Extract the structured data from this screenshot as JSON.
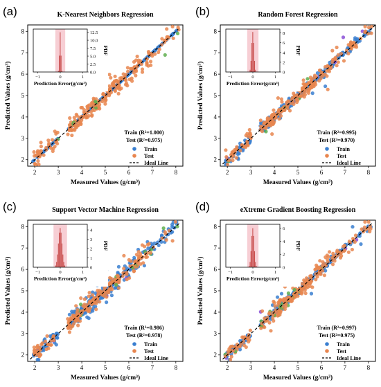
{
  "chart_data": [
    {
      "type": "scatter",
      "letter": "(a)",
      "title": "K-Nearest Neighbors Regression",
      "xlabel": "Measured  Values (g/cm³)",
      "ylabel": "Predicted  Values (g/cm³)",
      "xlim": [
        1.7,
        8.3
      ],
      "ylim": [
        1.7,
        8.3
      ],
      "xticks": [
        "2",
        "3",
        "4",
        "5",
        "6",
        "7",
        "8"
      ],
      "yticks": [
        "2",
        "3",
        "4",
        "5",
        "6",
        "7",
        "8"
      ],
      "grid": false,
      "legend_position": "lower-right",
      "train_stat": "Train (R²=1.000)",
      "test_stat": "Test (R²=0.975)",
      "series": [
        {
          "name": "Train",
          "color": "#3a7fd0",
          "r2": 1.0,
          "spread": 0.0
        },
        {
          "name": "Test",
          "color": "#e8864f",
          "r2": 0.975,
          "spread": 0.22
        }
      ],
      "ideal_line": {
        "name": "Ideal Line",
        "points": [
          [
            1.8,
            1.8
          ],
          [
            8.1,
            8.1
          ]
        ]
      },
      "inset": {
        "type": "histogram",
        "xlabel": "Prediction Error(g/cm³)",
        "ylabel": "PDF",
        "xlim": [
          -1.2,
          1.2
        ],
        "ylim": [
          0,
          13.5
        ],
        "xticks": [
          "−1",
          "0",
          "1"
        ],
        "yticks": [
          "0.0",
          "2.5",
          "5.0",
          "7.5",
          "10.0",
          "12.5"
        ],
        "peak": 12.5,
        "sigma": 0.03,
        "band": [
          -0.22,
          0.22
        ]
      }
    },
    {
      "type": "scatter",
      "letter": "(b)",
      "title": "Random Forest Regression",
      "xlabel": "Measured  Values (g/cm³)",
      "ylabel": "Predicted  Values (g/cm³)",
      "xlim": [
        1.7,
        8.3
      ],
      "ylim": [
        1.7,
        8.3
      ],
      "xticks": [
        "2",
        "3",
        "4",
        "5",
        "6",
        "7",
        "8"
      ],
      "yticks": [
        "2",
        "3",
        "4",
        "5",
        "6",
        "7",
        "8"
      ],
      "grid": false,
      "legend_position": "lower-right",
      "train_stat": "Train (R²=0.995)",
      "test_stat": "Test (R²=0.970)",
      "series": [
        {
          "name": "Train",
          "color": "#3a7fd0",
          "r2": 0.995,
          "spread": 0.1
        },
        {
          "name": "Test",
          "color": "#e8864f",
          "r2": 0.97,
          "spread": 0.17
        }
      ],
      "ideal_line": {
        "name": "Ideal Line",
        "points": [
          [
            1.8,
            1.8
          ],
          [
            8.3,
            8.3
          ]
        ]
      },
      "inset": {
        "type": "histogram",
        "xlabel": "Prediction Error(g/cm³)",
        "ylabel": "PDF",
        "xlim": [
          -1.2,
          1.2
        ],
        "ylim": [
          0,
          8.8
        ],
        "xticks": [
          "−1",
          "0",
          "1"
        ],
        "yticks": [
          "0",
          "2",
          "4",
          "6",
          "8"
        ],
        "peak": 8.2,
        "sigma": 0.05,
        "band": [
          -0.25,
          0.25
        ]
      }
    },
    {
      "type": "scatter",
      "letter": "(c)",
      "title": "Support Vector Machine Regression",
      "xlabel": "Measured  Values (g/cm³)",
      "ylabel": "Predicted  Values (g/cm³)",
      "xlim": [
        1.7,
        8.3
      ],
      "ylim": [
        1.7,
        8.3
      ],
      "xticks": [
        "2",
        "3",
        "4",
        "5",
        "6",
        "7",
        "8"
      ],
      "yticks": [
        "2",
        "3",
        "4",
        "5",
        "6",
        "7",
        "8"
      ],
      "grid": false,
      "legend_position": "lower-right",
      "train_stat": "Train (R²=0.986)",
      "test_stat": "Test (R²=0.978)",
      "series": [
        {
          "name": "Train",
          "color": "#3a7fd0",
          "r2": 0.986,
          "spread": 0.17
        },
        {
          "name": "Test",
          "color": "#e8864f",
          "r2": 0.978,
          "spread": 0.19
        }
      ],
      "ideal_line": {
        "name": "Ideal Line",
        "points": [
          [
            1.8,
            1.8
          ],
          [
            8.2,
            8.2
          ]
        ]
      },
      "inset": {
        "type": "histogram",
        "xlabel": "Prediction Error(g/cm³)",
        "ylabel": "PDF",
        "xlim": [
          -1.2,
          1.2
        ],
        "ylim": [
          0,
          4.6
        ],
        "xticks": [
          "−1",
          "0",
          "1"
        ],
        "yticks": [
          "0",
          "1",
          "2",
          "3",
          "4"
        ],
        "peak": 4.2,
        "sigma": 0.08,
        "band": [
          -0.3,
          0.3
        ]
      }
    },
    {
      "type": "scatter",
      "letter": "(d)",
      "title": "eXtreme Gradient Boosting Regression",
      "xlabel": "Measured  Values (g/cm³)",
      "ylabel": "Predicted  Values (g/cm³)",
      "xlim": [
        1.7,
        8.3
      ],
      "ylim": [
        1.7,
        8.3
      ],
      "xticks": [
        "2",
        "3",
        "4",
        "5",
        "6",
        "7",
        "8"
      ],
      "yticks": [
        "2",
        "3",
        "4",
        "5",
        "6",
        "7",
        "8"
      ],
      "grid": false,
      "legend_position": "lower-right",
      "train_stat": "Train (R²=0.997)",
      "test_stat": "Test (R²=0.975)",
      "series": [
        {
          "name": "Train",
          "color": "#3a7fd0",
          "r2": 0.997,
          "spread": 0.08
        },
        {
          "name": "Test",
          "color": "#e8864f",
          "r2": 0.975,
          "spread": 0.18
        }
      ],
      "ideal_line": {
        "name": "Ideal Line",
        "points": [
          [
            1.8,
            1.8
          ],
          [
            8.2,
            8.2
          ]
        ]
      },
      "inset": {
        "type": "histogram",
        "xlabel": "Prediction Error(g/cm³)",
        "ylabel": "PDF",
        "xlim": [
          -1.2,
          1.2
        ],
        "ylim": [
          0,
          6.6
        ],
        "xticks": [
          "−1",
          "0",
          "1"
        ],
        "yticks": [
          "0",
          "2",
          "4",
          "6"
        ],
        "peak": 6.0,
        "sigma": 0.06,
        "band": [
          -0.25,
          0.25
        ]
      }
    }
  ],
  "colors": {
    "band_fill": "#f6c9cf",
    "hist_bar": "#c9504f",
    "ideal_line": "#000000",
    "extra_points": "#8a4fd6",
    "extra_points_alt": "#5fae4f"
  }
}
